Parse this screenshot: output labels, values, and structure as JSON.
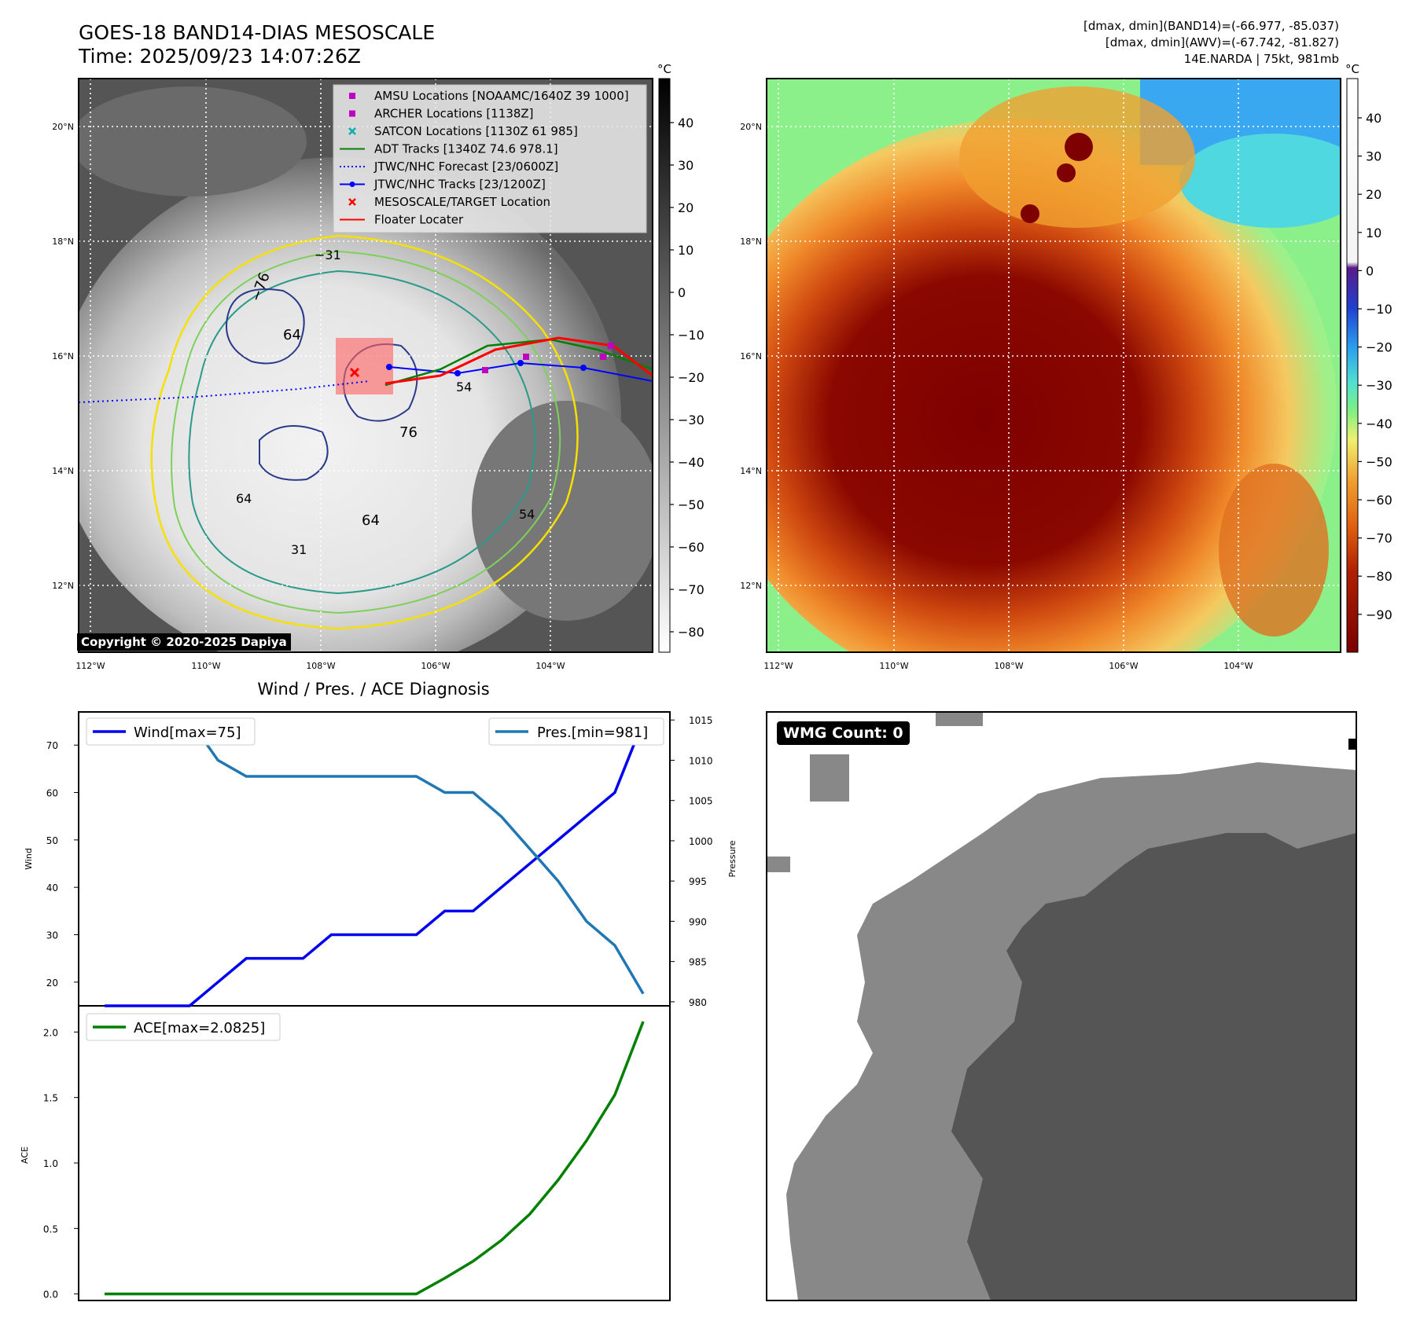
{
  "header": {
    "title_line1": "GOES-18 BAND14-DIAS MESOSCALE",
    "title_line2": "Time: 2025/09/23 14:07:26Z",
    "info_line1": "[dmax, dmin](BAND14)=(-66.977, -85.037)",
    "info_line2": "[dmax, dmin](AWV)=(-67.742, -81.827)",
    "info_line3": "14E.NARDA | 75kt, 981mb"
  },
  "left_map": {
    "colorbar_unit": "°C",
    "colorbar_ticks": [
      "40",
      "30",
      "20",
      "10",
      "0",
      "−10",
      "−20",
      "−30",
      "−40",
      "−50",
      "−60",
      "−70",
      "−80"
    ],
    "lat_labels": [
      "20°N",
      "18°N",
      "16°N",
      "14°N",
      "12°N"
    ],
    "lon_labels": [
      "112°W",
      "110°W",
      "108°W",
      "106°W",
      "104°W"
    ],
    "contour_labels": [
      "−76",
      "64",
      "76",
      "64",
      "−31",
      "54",
      "64",
      "54",
      "31"
    ],
    "copyright": "Copyright © 2020-2025 Dapiya",
    "legend": [
      {
        "label": "AMSU Locations [NOAAMC/1640Z 39 1000]",
        "marker": "square",
        "color": "#c000c0"
      },
      {
        "label": "ARCHER Locations [1138Z]",
        "marker": "square",
        "color": "#c000c0"
      },
      {
        "label": "SATCON Locations [1130Z 61 985]",
        "marker": "x",
        "color": "#00b0b0"
      },
      {
        "label": "ADT Tracks [1340Z 74.6 978.1]",
        "marker": "line",
        "color": "#008000"
      },
      {
        "label": "JTWC/NHC Forecast [23/0600Z]",
        "marker": "dotted",
        "color": "#0000ff"
      },
      {
        "label": "JTWC/NHC Tracks [23/1200Z]",
        "marker": "line-dot",
        "color": "#0000ff"
      },
      {
        "label": "MESOSCALE/TARGET Location",
        "marker": "x",
        "color": "#ff0000"
      },
      {
        "label": "Floater Locater",
        "marker": "line",
        "color": "#ff0000"
      }
    ]
  },
  "right_map": {
    "colorbar_unit": "°C",
    "colorbar_ticks": [
      "40",
      "30",
      "20",
      "10",
      "0",
      "−10",
      "−20",
      "−30",
      "−40",
      "−50",
      "−60",
      "−70",
      "−80",
      "−90"
    ],
    "lat_labels": [
      "20°N",
      "18°N",
      "16°N",
      "14°N",
      "12°N"
    ],
    "lon_labels": [
      "112°W",
      "110°W",
      "108°W",
      "106°W",
      "104°W"
    ]
  },
  "diagnosis": {
    "title": "Wind / Pres. / ACE Diagnosis",
    "wind_ylabel": "Wind",
    "pres_ylabel": "Pressure",
    "ace_ylabel": "ACE",
    "legend_wind": "Wind[max=75]",
    "legend_pres": "Pres.[min=981]",
    "legend_ace": "ACE[max=2.0825]",
    "colors": {
      "wind": "#0000ee",
      "pres": "#1f77b4",
      "ace": "#008000"
    }
  },
  "wmg": {
    "label": "WMG Count: 0"
  },
  "chart_data": [
    {
      "type": "line",
      "title": "Wind / Pres. / ACE Diagnosis",
      "xlabel": "",
      "x": [
        0,
        1,
        2,
        3,
        4,
        5,
        6,
        7,
        8,
        9,
        10,
        11,
        12,
        13,
        14,
        15,
        16,
        17,
        18,
        19
      ],
      "series": [
        {
          "name": "Wind[max=75]",
          "axis": "left",
          "values": [
            15,
            15,
            15,
            15,
            20,
            25,
            25,
            25,
            30,
            30,
            30,
            30,
            35,
            35,
            40,
            45,
            50,
            55,
            60,
            75
          ]
        },
        {
          "name": "Pres.[min=981]",
          "axis": "right",
          "values": [
            1015,
            1015,
            1015,
            1015,
            1010,
            1008,
            1008,
            1008,
            1008,
            1008,
            1008,
            1008,
            1006,
            1006,
            1003,
            999,
            995,
            990,
            987,
            981
          ]
        }
      ],
      "ylim_left": [
        15,
        77
      ],
      "yticks_left": [
        20,
        30,
        40,
        50,
        60,
        70
      ],
      "ylim_right": [
        979.5,
        1016
      ],
      "yticks_right": [
        980,
        985,
        990,
        995,
        1000,
        1005,
        1010,
        1015
      ],
      "ylabel": "Wind",
      "ylabel_right": "Pressure"
    },
    {
      "type": "line",
      "xlabel": "",
      "x": [
        0,
        1,
        2,
        3,
        4,
        5,
        6,
        7,
        8,
        9,
        10,
        11,
        12,
        13,
        14,
        15,
        16,
        17,
        18,
        19
      ],
      "series": [
        {
          "name": "ACE[max=2.0825]",
          "values": [
            0,
            0,
            0,
            0,
            0,
            0,
            0,
            0,
            0,
            0,
            0,
            0,
            0.12,
            0.25,
            0.41,
            0.61,
            0.87,
            1.17,
            1.52,
            2.08
          ]
        }
      ],
      "ylim": [
        -0.05,
        2.2
      ],
      "yticks": [
        0.0,
        0.5,
        1.0,
        1.5,
        2.0
      ],
      "ylabel": "ACE"
    }
  ]
}
